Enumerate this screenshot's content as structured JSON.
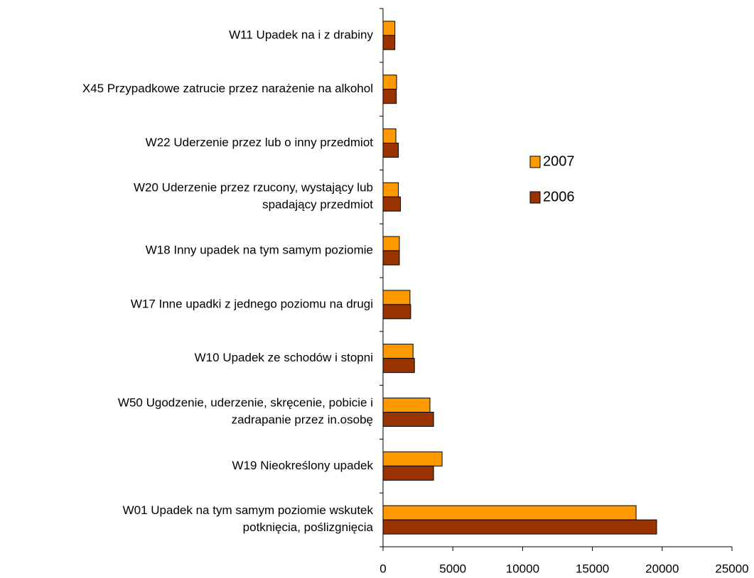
{
  "chart_data": {
    "type": "barh",
    "categories": [
      "W11 Upadek na i z drabiny",
      "X45 Przypadkowe zatrucie przez narażenie na alkohol",
      "W22 Uderzenie przez lub o inny przedmiot",
      "W20 Uderzenie przez rzucony, wystający lub\nspadający przedmiot",
      "W18 Inny upadek na tym samym poziomie",
      "W17 Inne upadki z jednego poziomu na drugi",
      "W10 Upadek ze schodów i stopni",
      "W50 Ugodzenie, uderzenie, skręcenie, pobicie i\nzadrapanie przez in.osobę",
      "W19 Nieokreślony upadek",
      "W01 Upadek na tym samym poziomie wskutek\npotknięcia, poślizgnięcia"
    ],
    "series": [
      {
        "name": "2007",
        "color": "#ff9900",
        "values": [
          850,
          970,
          920,
          1100,
          1170,
          1930,
          2150,
          3360,
          4230,
          18130
        ]
      },
      {
        "name": "2006",
        "color": "#993300",
        "values": [
          850,
          950,
          1100,
          1250,
          1170,
          1980,
          2250,
          3620,
          3620,
          19600
        ]
      }
    ],
    "xlim": [
      0,
      25000
    ],
    "xticks": [
      0,
      5000,
      10000,
      15000,
      20000,
      25000
    ],
    "grid": false,
    "legend": "right"
  }
}
